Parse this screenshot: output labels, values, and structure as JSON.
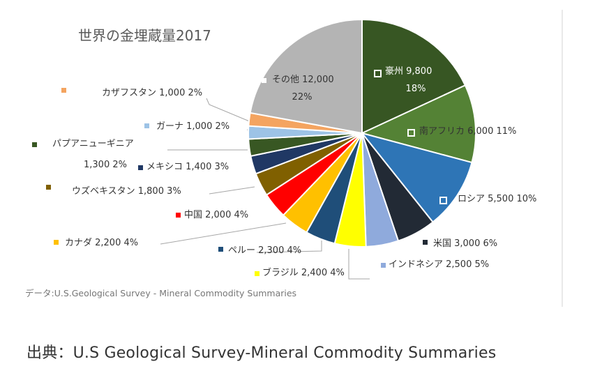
{
  "chart_data": {
    "type": "pie",
    "title": "世界の金埋蔵量2017",
    "source_note": "データ:U.S.Geological Survey - Mineral Commodity Summaries",
    "slices": [
      {
        "name": "豪州",
        "value": 9800,
        "value_label": "9,800",
        "percent": "18%",
        "color": "#375623"
      },
      {
        "name": "南アフリカ",
        "value": 6000,
        "value_label": "6,000",
        "percent": "11%",
        "color": "#548235"
      },
      {
        "name": "ロシア",
        "value": 5500,
        "value_label": "5,500",
        "percent": "10%",
        "color": "#2e75b6"
      },
      {
        "name": "米国",
        "value": 3000,
        "value_label": "3,000",
        "percent": "6%",
        "color": "#222a35"
      },
      {
        "name": "インドネシア",
        "value": 2500,
        "value_label": "2,500",
        "percent": "5%",
        "color": "#8faadc"
      },
      {
        "name": "ブラジル",
        "value": 2400,
        "value_label": "2,400",
        "percent": "4%",
        "color": "#ffff00"
      },
      {
        "name": "ペルー",
        "value": 2300,
        "value_label": "2,300",
        "percent": "4%",
        "color": "#1f4e79"
      },
      {
        "name": "カナダ",
        "value": 2200,
        "value_label": "2,200",
        "percent": "4%",
        "color": "#ffc000"
      },
      {
        "name": "中国",
        "value": 2000,
        "value_label": "2,000",
        "percent": "4%",
        "color": "#ff0000"
      },
      {
        "name": "ウズベキスタン",
        "value": 1800,
        "value_label": "1,800",
        "percent": "3%",
        "color": "#806000"
      },
      {
        "name": "メキシコ",
        "value": 1400,
        "value_label": "1,400",
        "percent": "3%",
        "color": "#203864"
      },
      {
        "name": "パプアニューギニア",
        "value": 1300,
        "value_label": "1,300",
        "percent": "2%",
        "color": "#385723"
      },
      {
        "name": "ガーナ",
        "value": 1000,
        "value_label": "1,000",
        "percent": "2%",
        "color": "#9dc3e6"
      },
      {
        "name": "カザフスタン",
        "value": 1000,
        "value_label": "1,000",
        "percent": "2%",
        "color": "#f4a460"
      },
      {
        "name": "その他",
        "value": 12000,
        "value_label": "12,000",
        "percent": "22%",
        "color": "#b4b4b4"
      }
    ]
  },
  "caption": "出典：U.S Geological Survey-Mineral Commodity Summaries"
}
